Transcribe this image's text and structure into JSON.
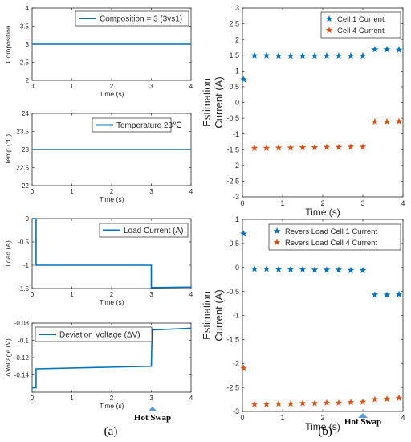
{
  "figure": {
    "panel_a_label": "(a)",
    "panel_b_label": "(b)",
    "hot_swap_label": "Hot Swap",
    "hot_swap_marker": "triangle-icon",
    "colors": {
      "blue": "#0072BD",
      "orange": "#D95319",
      "hot_swap_marker": "#5B9BD5"
    }
  },
  "chart_data": [
    {
      "type": "line",
      "title": "",
      "xlabel": "Time (s)",
      "ylabel": "Composition",
      "xlim": [
        0,
        4
      ],
      "ylim": [
        2,
        4
      ],
      "xticks": [
        0,
        1,
        2,
        3,
        4
      ],
      "yticks": [
        2,
        2.5,
        3,
        3.5,
        4
      ],
      "ytick_labels": [
        "2",
        "2.5",
        "3",
        "3.5",
        "4"
      ],
      "legend_position": "top-right",
      "grid": false,
      "series": [
        {
          "name": "Composition = 3 (3vs1)",
          "color": "#0072BD",
          "x": [
            0,
            4
          ],
          "y": [
            3,
            3
          ]
        }
      ]
    },
    {
      "type": "line",
      "title": "",
      "xlabel": "Time (s)",
      "ylabel": "Temp (℃)",
      "xlim": [
        0,
        4
      ],
      "ylim": [
        22,
        24
      ],
      "xticks": [
        0,
        1,
        2,
        3,
        4
      ],
      "yticks": [
        22,
        22.5,
        23,
        23.5,
        24
      ],
      "ytick_labels": [
        "22",
        "22.5",
        "23",
        "23.5",
        "24"
      ],
      "legend_position": "top-right",
      "grid": false,
      "series": [
        {
          "name": "Temperature 23℃",
          "color": "#0072BD",
          "x": [
            0,
            4
          ],
          "y": [
            23,
            23
          ]
        }
      ]
    },
    {
      "type": "line",
      "title": "",
      "xlabel": "Time (s)",
      "ylabel": "Load (A)",
      "xlim": [
        0,
        4
      ],
      "ylim": [
        -1.5,
        0
      ],
      "xticks": [
        0,
        1,
        2,
        3,
        4
      ],
      "yticks": [
        -1.5,
        -1,
        -0.5,
        0
      ],
      "ytick_labels": [
        "-1.5",
        "-1",
        "-0.5",
        "0"
      ],
      "legend_position": "top-right",
      "grid": false,
      "series": [
        {
          "name": "Load Current (A)",
          "color": "#0072BD",
          "x": [
            0,
            0.1,
            0.1,
            3.0,
            3.0,
            4.0
          ],
          "y": [
            0,
            0,
            -1.0,
            -1.0,
            -1.48,
            -1.47
          ]
        }
      ]
    },
    {
      "type": "line",
      "title": "",
      "xlabel": "Time (s)",
      "ylabel": "ΔVoltage (V)",
      "xlim": [
        0,
        4
      ],
      "ylim": [
        -0.16,
        -0.08
      ],
      "xticks": [
        0,
        1,
        2,
        3,
        4
      ],
      "yticks": [
        -0.16,
        -0.14,
        -0.12,
        -0.1,
        -0.08
      ],
      "ytick_labels": [
        "",
        "-0.14",
        "-0.12",
        "-0.1",
        "-0.08"
      ],
      "legend_position": "top-left",
      "grid": false,
      "series": [
        {
          "name": "Deviation Voltage (ΔV)",
          "color": "#0072BD",
          "x": [
            0,
            0.1,
            0.1,
            3.0,
            3.02,
            4.0
          ],
          "y": [
            -0.155,
            -0.155,
            -0.133,
            -0.13,
            -0.088,
            -0.086
          ]
        }
      ]
    },
    {
      "type": "scatter",
      "title": "",
      "xlabel": "Time (s)",
      "ylabel_lines": [
        "Estimation",
        "Current (A)"
      ],
      "xlim": [
        0,
        4
      ],
      "ylim": [
        -3,
        3
      ],
      "xticks": [
        0,
        1,
        2,
        3,
        4
      ],
      "yticks": [
        -3,
        -2.5,
        -2,
        -1.5,
        -1,
        -0.5,
        0,
        0.5,
        1,
        1.5,
        2,
        2.5,
        3
      ],
      "ytick_labels": [
        "-3",
        "-2.5",
        "-2",
        "-1.5",
        "-1",
        "-0.5",
        "0",
        "0.5",
        "1",
        "1.5",
        "2",
        "2.5",
        "3"
      ],
      "legend_position": "top-right",
      "grid": false,
      "series": [
        {
          "name": "Cell 1 Current",
          "color": "#0072BD",
          "marker": "star",
          "x": [
            0.03,
            0.3,
            0.6,
            0.9,
            1.2,
            1.5,
            1.8,
            2.1,
            2.4,
            2.7,
            3.0,
            3.3,
            3.6,
            3.9
          ],
          "y": [
            0.73,
            1.49,
            1.49,
            1.48,
            1.48,
            1.48,
            1.48,
            1.48,
            1.48,
            1.48,
            1.48,
            1.68,
            1.68,
            1.67
          ]
        },
        {
          "name": "Cell 4 Current",
          "color": "#D95319",
          "marker": "star",
          "x": [
            0.3,
            0.6,
            0.9,
            1.2,
            1.5,
            1.8,
            2.1,
            2.4,
            2.7,
            3.0,
            3.3,
            3.6,
            3.9
          ],
          "y": [
            -1.45,
            -1.45,
            -1.44,
            -1.44,
            -1.43,
            -1.43,
            -1.42,
            -1.42,
            -1.41,
            -1.41,
            -0.61,
            -0.61,
            -0.6
          ]
        }
      ]
    },
    {
      "type": "scatter",
      "title": "",
      "xlabel": "Time (s)",
      "ylabel_lines": [
        "Estimation",
        "Current (A)"
      ],
      "xlim": [
        0,
        4
      ],
      "ylim": [
        -3,
        1
      ],
      "xticks": [
        0,
        1,
        2,
        3,
        4
      ],
      "yticks": [
        -3,
        -2.5,
        -2,
        -1.5,
        -1,
        -0.5,
        0,
        0.5,
        1
      ],
      "ytick_labels": [
        "-3",
        "-2.5",
        "-2",
        "-1.5",
        "-1",
        "-0.5",
        "0",
        "0.5",
        "1"
      ],
      "legend_position": "top-right",
      "grid": false,
      "series": [
        {
          "name": "Revers Load Cell 1 Current",
          "color": "#0072BD",
          "marker": "star",
          "x": [
            0.03,
            0.3,
            0.6,
            0.9,
            1.2,
            1.5,
            1.8,
            2.1,
            2.4,
            2.7,
            3.0,
            3.3,
            3.6,
            3.9
          ],
          "y": [
            0.7,
            -0.03,
            -0.03,
            -0.04,
            -0.04,
            -0.04,
            -0.05,
            -0.05,
            -0.05,
            -0.06,
            -0.06,
            -0.57,
            -0.57,
            -0.56
          ]
        },
        {
          "name": "Revers Load Cell 4 Current",
          "color": "#D95319",
          "marker": "star",
          "x": [
            0.03,
            0.3,
            0.6,
            0.9,
            1.2,
            1.5,
            1.8,
            2.1,
            2.4,
            2.7,
            3.0,
            3.3,
            3.6,
            3.9
          ],
          "y": [
            -2.1,
            -2.85,
            -2.85,
            -2.84,
            -2.84,
            -2.83,
            -2.83,
            -2.82,
            -2.82,
            -2.81,
            -2.8,
            -2.75,
            -2.74,
            -2.72
          ]
        }
      ]
    }
  ]
}
